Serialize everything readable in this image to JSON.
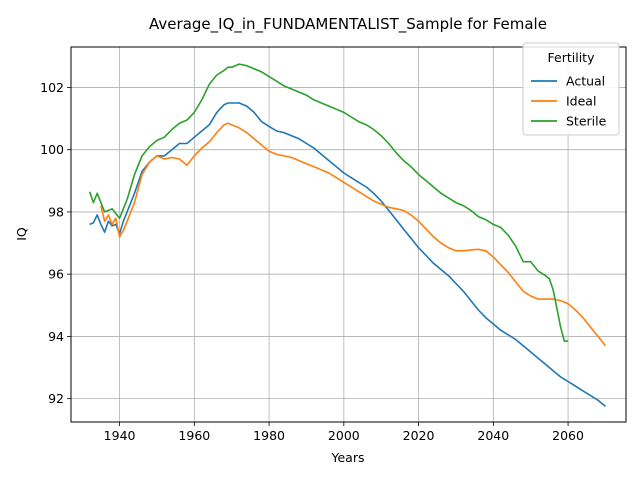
{
  "chart_data": {
    "type": "line",
    "title": "Average_IQ_in_FUNDAMENTALIST_Sample for Female",
    "xlabel": "Years",
    "ylabel": "IQ",
    "xlim": [
      1927,
      2075.5
    ],
    "ylim": [
      91.25,
      103.3
    ],
    "xticks": [
      1940,
      1960,
      1980,
      2000,
      2020,
      2040,
      2060
    ],
    "yticks": [
      92,
      94,
      96,
      98,
      100,
      102
    ],
    "grid": true,
    "legend": {
      "title": "Fertility",
      "placement": "top-right"
    },
    "series": [
      {
        "name": "Actual",
        "color": "#1f77b4",
        "x": [
          1932,
          1933,
          1934,
          1935,
          1936,
          1937,
          1938,
          1939,
          1940,
          1941,
          1942,
          1944,
          1946,
          1948,
          1950,
          1952,
          1954,
          1956,
          1958,
          1960,
          1962,
          1964,
          1966,
          1968,
          1969,
          1970,
          1972,
          1974,
          1976,
          1978,
          1980,
          1982,
          1984,
          1986,
          1988,
          1990,
          1992,
          1994,
          1996,
          1998,
          2000,
          2002,
          2004,
          2006,
          2008,
          2010,
          2012,
          2014,
          2016,
          2018,
          2020,
          2022,
          2024,
          2026,
          2028,
          2030,
          2032,
          2034,
          2036,
          2038,
          2040,
          2042,
          2044,
          2046,
          2048,
          2050,
          2052,
          2054,
          2056,
          2058,
          2060,
          2062,
          2064,
          2066,
          2068,
          2070
        ],
        "values": [
          97.6,
          97.65,
          97.9,
          97.6,
          97.35,
          97.7,
          97.55,
          97.6,
          97.3,
          97.7,
          98.0,
          98.6,
          99.3,
          99.6,
          99.8,
          99.8,
          100.0,
          100.2,
          100.2,
          100.4,
          100.6,
          100.8,
          101.2,
          101.45,
          101.5,
          101.5,
          101.5,
          101.4,
          101.2,
          100.9,
          100.75,
          100.6,
          100.55,
          100.45,
          100.35,
          100.2,
          100.05,
          99.85,
          99.65,
          99.45,
          99.25,
          99.1,
          98.95,
          98.8,
          98.6,
          98.35,
          98.05,
          97.75,
          97.45,
          97.15,
          96.85,
          96.6,
          96.35,
          96.15,
          95.95,
          95.7,
          95.45,
          95.15,
          94.85,
          94.6,
          94.4,
          94.2,
          94.05,
          93.9,
          93.7,
          93.5,
          93.3,
          93.1,
          92.9,
          92.7,
          92.55,
          92.4,
          92.25,
          92.1,
          91.95,
          91.75
        ]
      },
      {
        "name": "Ideal",
        "color": "#ff7f0e",
        "x": [
          1935,
          1936,
          1937,
          1938,
          1939,
          1940,
          1941,
          1942,
          1944,
          1946,
          1948,
          1950,
          1952,
          1954,
          1956,
          1958,
          1960,
          1962,
          1964,
          1966,
          1968,
          1969,
          1970,
          1972,
          1974,
          1976,
          1978,
          1980,
          1982,
          1984,
          1986,
          1988,
          1990,
          1992,
          1994,
          1996,
          1998,
          2000,
          2002,
          2004,
          2006,
          2008,
          2010,
          2012,
          2014,
          2016,
          2018,
          2020,
          2022,
          2024,
          2026,
          2028,
          2030,
          2032,
          2034,
          2036,
          2038,
          2040,
          2042,
          2044,
          2046,
          2048,
          2050,
          2052,
          2054,
          2056,
          2058,
          2060,
          2062,
          2064,
          2066,
          2068,
          2070
        ],
        "values": [
          98.2,
          97.7,
          97.9,
          97.6,
          97.8,
          97.2,
          97.4,
          97.7,
          98.3,
          99.2,
          99.6,
          99.8,
          99.7,
          99.75,
          99.7,
          99.5,
          99.8,
          100.05,
          100.25,
          100.55,
          100.8,
          100.85,
          100.8,
          100.7,
          100.55,
          100.35,
          100.15,
          99.95,
          99.85,
          99.8,
          99.75,
          99.65,
          99.55,
          99.45,
          99.35,
          99.25,
          99.1,
          98.95,
          98.8,
          98.65,
          98.5,
          98.35,
          98.25,
          98.15,
          98.1,
          98.05,
          97.9,
          97.7,
          97.45,
          97.2,
          97.0,
          96.85,
          96.75,
          96.75,
          96.78,
          96.8,
          96.75,
          96.55,
          96.3,
          96.05,
          95.75,
          95.45,
          95.3,
          95.2,
          95.2,
          95.2,
          95.15,
          95.05,
          94.85,
          94.6,
          94.3,
          94.0,
          93.7
        ]
      },
      {
        "name": "Sterile",
        "color": "#2ca02c",
        "x": [
          1932,
          1933,
          1934,
          1935,
          1936,
          1937,
          1938,
          1939,
          1940,
          1941,
          1942,
          1944,
          1946,
          1948,
          1950,
          1952,
          1954,
          1956,
          1958,
          1960,
          1962,
          1964,
          1966,
          1968,
          1969,
          1970,
          1972,
          1974,
          1976,
          1978,
          1980,
          1982,
          1984,
          1986,
          1988,
          1990,
          1992,
          1994,
          1996,
          1998,
          2000,
          2002,
          2004,
          2006,
          2008,
          2010,
          2012,
          2014,
          2016,
          2018,
          2020,
          2022,
          2024,
          2026,
          2028,
          2030,
          2032,
          2034,
          2036,
          2038,
          2040,
          2042,
          2044,
          2046,
          2048,
          2050,
          2052,
          2054,
          2055,
          2056,
          2057,
          2058,
          2059,
          2060
        ],
        "values": [
          98.65,
          98.3,
          98.6,
          98.3,
          98.0,
          98.05,
          98.1,
          97.95,
          97.8,
          98.1,
          98.4,
          99.2,
          99.8,
          100.1,
          100.3,
          100.4,
          100.65,
          100.85,
          100.95,
          101.2,
          101.6,
          102.1,
          102.4,
          102.55,
          102.65,
          102.65,
          102.75,
          102.7,
          102.6,
          102.5,
          102.35,
          102.2,
          102.05,
          101.95,
          101.85,
          101.75,
          101.6,
          101.5,
          101.4,
          101.3,
          101.2,
          101.05,
          100.9,
          100.8,
          100.65,
          100.45,
          100.2,
          99.9,
          99.65,
          99.45,
          99.2,
          99.0,
          98.8,
          98.6,
          98.45,
          98.3,
          98.2,
          98.05,
          97.85,
          97.75,
          97.6,
          97.5,
          97.25,
          96.9,
          96.4,
          96.4,
          96.1,
          95.95,
          95.85,
          95.5,
          94.9,
          94.3,
          93.85,
          93.85
        ]
      }
    ]
  }
}
